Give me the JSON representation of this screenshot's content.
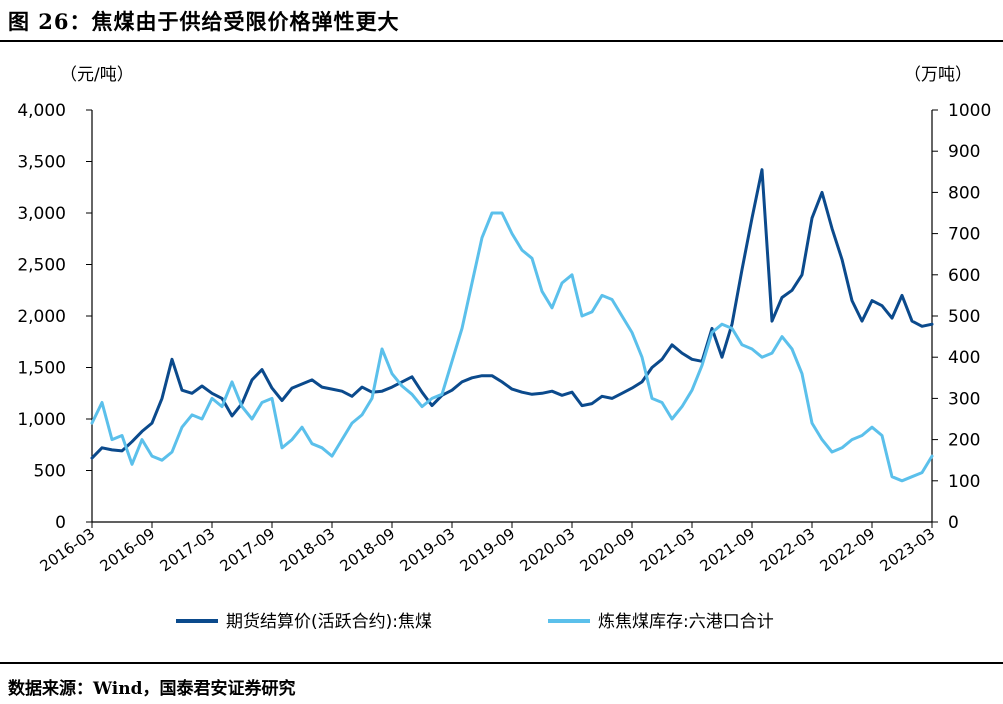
{
  "figure": {
    "title": "图 26：焦煤由于供给受限价格弹性更大",
    "source": "数据来源：Wind，国泰君安证券研究"
  },
  "colors": {
    "price": "#0b4a8c",
    "inventory": "#5bc0eb"
  },
  "chart_data": {
    "type": "line",
    "left_unit": "（元/吨）",
    "right_unit": "（万吨）",
    "y_left": {
      "lim": [
        0,
        4000
      ],
      "ticks": [
        0,
        500,
        1000,
        1500,
        2000,
        2500,
        3000,
        3500,
        4000
      ],
      "tick_labels": [
        "0",
        "500",
        "1,000",
        "1,500",
        "2,000",
        "2,500",
        "3,000",
        "3,500",
        "4,000"
      ]
    },
    "y_right": {
      "lim": [
        0,
        1000
      ],
      "ticks": [
        0,
        100,
        200,
        300,
        400,
        500,
        600,
        700,
        800,
        900,
        1000
      ],
      "tick_labels": [
        "0",
        "100",
        "200",
        "300",
        "400",
        "500",
        "600",
        "700",
        "800",
        "900",
        "1000"
      ]
    },
    "x_ticks": [
      "2016-03",
      "2016-09",
      "2017-03",
      "2017-09",
      "2018-03",
      "2018-09",
      "2019-03",
      "2019-09",
      "2020-03",
      "2020-09",
      "2021-03",
      "2021-09",
      "2022-03",
      "2022-09",
      "2023-03"
    ],
    "legend_position": "bottom",
    "series": [
      {
        "name": "期货结算价(活跃合约):焦煤",
        "axis": "left",
        "x": [
          "2016-03",
          "2016-04",
          "2016-05",
          "2016-06",
          "2016-07",
          "2016-08",
          "2016-09",
          "2016-10",
          "2016-11",
          "2016-12",
          "2017-01",
          "2017-02",
          "2017-03",
          "2017-04",
          "2017-05",
          "2017-06",
          "2017-07",
          "2017-08",
          "2017-09",
          "2017-10",
          "2017-11",
          "2017-12",
          "2018-01",
          "2018-02",
          "2018-03",
          "2018-04",
          "2018-05",
          "2018-06",
          "2018-07",
          "2018-08",
          "2018-09",
          "2018-10",
          "2018-11",
          "2018-12",
          "2019-01",
          "2019-02",
          "2019-03",
          "2019-04",
          "2019-05",
          "2019-06",
          "2019-07",
          "2019-08",
          "2019-09",
          "2019-10",
          "2019-11",
          "2019-12",
          "2020-01",
          "2020-02",
          "2020-03",
          "2020-04",
          "2020-05",
          "2020-06",
          "2020-07",
          "2020-08",
          "2020-09",
          "2020-10",
          "2020-11",
          "2020-12",
          "2021-01",
          "2021-02",
          "2021-03",
          "2021-04",
          "2021-05",
          "2021-06",
          "2021-07",
          "2021-08",
          "2021-09",
          "2021-10",
          "2021-11",
          "2021-12",
          "2022-01",
          "2022-02",
          "2022-03",
          "2022-04",
          "2022-05",
          "2022-06",
          "2022-07",
          "2022-08",
          "2022-09",
          "2022-10",
          "2022-11",
          "2022-12",
          "2023-01",
          "2023-02",
          "2023-03"
        ],
        "values": [
          620,
          720,
          700,
          690,
          780,
          880,
          960,
          1200,
          1580,
          1280,
          1250,
          1320,
          1250,
          1200,
          1030,
          1150,
          1380,
          1480,
          1300,
          1180,
          1300,
          1340,
          1380,
          1310,
          1290,
          1270,
          1220,
          1310,
          1260,
          1270,
          1310,
          1360,
          1410,
          1260,
          1130,
          1230,
          1280,
          1360,
          1400,
          1420,
          1420,
          1360,
          1290,
          1260,
          1240,
          1250,
          1270,
          1230,
          1260,
          1130,
          1150,
          1220,
          1200,
          1250,
          1300,
          1360,
          1500,
          1580,
          1720,
          1640,
          1580,
          1560,
          1880,
          1600,
          1920,
          2450,
          2950,
          3420,
          1950,
          2180,
          2250,
          2400,
          2950,
          3200,
          2850,
          2550,
          2150,
          1950,
          2150,
          2100,
          1980,
          2200,
          1950,
          1900,
          1920
        ]
      },
      {
        "name": "炼焦煤库存:六港口合计",
        "axis": "right",
        "x": [
          "2016-03",
          "2016-04",
          "2016-05",
          "2016-06",
          "2016-07",
          "2016-08",
          "2016-09",
          "2016-10",
          "2016-11",
          "2016-12",
          "2017-01",
          "2017-02",
          "2017-03",
          "2017-04",
          "2017-05",
          "2017-06",
          "2017-07",
          "2017-08",
          "2017-09",
          "2017-10",
          "2017-11",
          "2017-12",
          "2018-01",
          "2018-02",
          "2018-03",
          "2018-04",
          "2018-05",
          "2018-06",
          "2018-07",
          "2018-08",
          "2018-09",
          "2018-10",
          "2018-11",
          "2018-12",
          "2019-01",
          "2019-02",
          "2019-03",
          "2019-04",
          "2019-05",
          "2019-06",
          "2019-07",
          "2019-08",
          "2019-09",
          "2019-10",
          "2019-11",
          "2019-12",
          "2020-01",
          "2020-02",
          "2020-03",
          "2020-04",
          "2020-05",
          "2020-06",
          "2020-07",
          "2020-08",
          "2020-09",
          "2020-10",
          "2020-11",
          "2020-12",
          "2021-01",
          "2021-02",
          "2021-03",
          "2021-04",
          "2021-05",
          "2021-06",
          "2021-07",
          "2021-08",
          "2021-09",
          "2021-10",
          "2021-11",
          "2021-12",
          "2022-01",
          "2022-02",
          "2022-03",
          "2022-04",
          "2022-05",
          "2022-06",
          "2022-07",
          "2022-08",
          "2022-09",
          "2022-10",
          "2022-11",
          "2022-12",
          "2023-01",
          "2023-02",
          "2023-03"
        ],
        "values": [
          240,
          290,
          200,
          210,
          140,
          200,
          160,
          150,
          170,
          230,
          260,
          250,
          300,
          280,
          340,
          280,
          250,
          290,
          300,
          180,
          200,
          230,
          190,
          180,
          160,
          200,
          240,
          260,
          300,
          420,
          360,
          330,
          310,
          280,
          300,
          310,
          390,
          470,
          580,
          690,
          750,
          750,
          700,
          660,
          640,
          560,
          520,
          580,
          600,
          500,
          510,
          550,
          540,
          500,
          460,
          400,
          300,
          290,
          250,
          280,
          320,
          380,
          460,
          480,
          470,
          430,
          420,
          400,
          410,
          450,
          420,
          360,
          240,
          200,
          170,
          180,
          200,
          210,
          230,
          210,
          110,
          100,
          110,
          120,
          160
        ]
      }
    ]
  }
}
